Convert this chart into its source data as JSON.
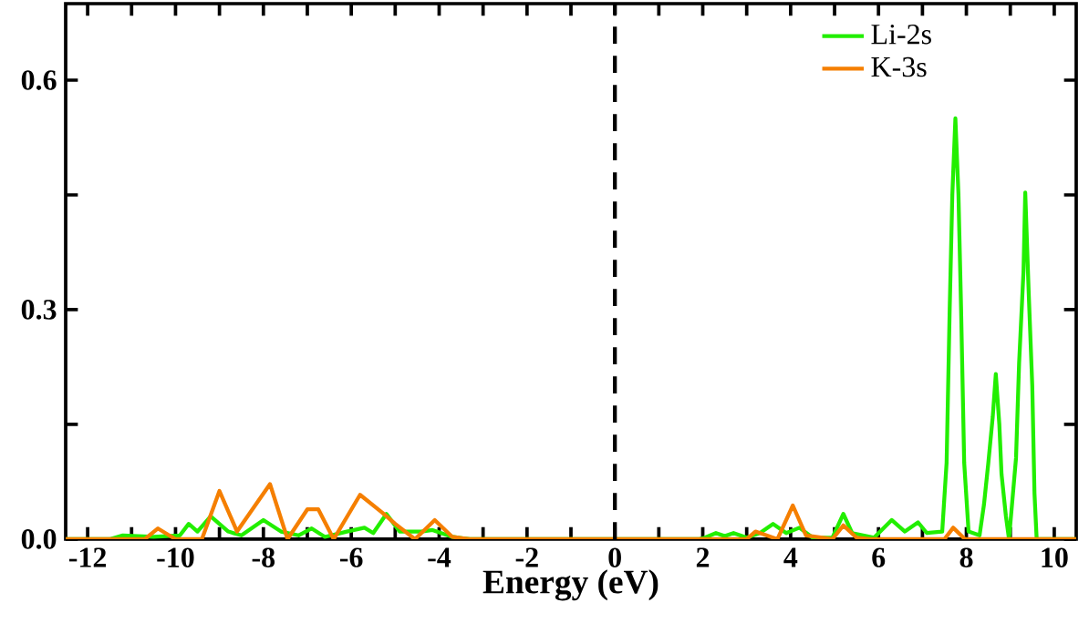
{
  "chart_data": {
    "type": "line",
    "xlabel": "Energy (eV)",
    "xlim": [
      -12.5,
      10.5
    ],
    "ylim": [
      0,
      0.7
    ],
    "xticks": [
      -12,
      {
        "value": -11,
        "label": null
      },
      -10,
      {
        "value": -9,
        "label": null
      },
      -8,
      {
        "value": -7,
        "label": null
      },
      -6,
      {
        "value": -5,
        "label": null
      },
      -4,
      {
        "value": -3,
        "label": null
      },
      -2,
      {
        "value": -1,
        "label": null
      },
      0,
      {
        "value": 1,
        "label": null
      },
      2,
      {
        "value": 3,
        "label": null
      },
      4,
      {
        "value": 5,
        "label": null
      },
      6,
      {
        "value": 7,
        "label": null
      },
      8,
      {
        "value": 9,
        "label": null
      },
      10
    ],
    "yticks": [
      {
        "value": 0,
        "label": "0.0"
      },
      {
        "value": 0.15,
        "label": null
      },
      {
        "value": 0.3,
        "label": "0.3"
      },
      {
        "value": 0.45,
        "label": null
      },
      {
        "value": 0.6,
        "label": "0.6"
      }
    ],
    "legend": "top right",
    "grid": false,
    "marker": "none",
    "line_style": "solid",
    "ref_lines": [
      {
        "axis": "x",
        "value": 0,
        "color": "#000000",
        "line_style": "dashed"
      }
    ],
    "series": [
      {
        "name": "Li-2s",
        "color": "#22ee00",
        "x": [
          -12.5,
          -11.5,
          -11.2,
          -10.5,
          -9.9,
          -9.7,
          -9.5,
          -9.2,
          -8.8,
          -8.5,
          -8.0,
          -7.6,
          -7.2,
          -6.9,
          -6.6,
          -6.1,
          -5.7,
          -5.5,
          -5.2,
          -4.9,
          -4.4,
          -4.15,
          -3.7,
          -3.3,
          1.9,
          2.05,
          2.3,
          2.5,
          2.7,
          3.0,
          3.3,
          3.6,
          3.9,
          4.2,
          4.5,
          4.95,
          5.2,
          5.4,
          5.9,
          6.3,
          6.6,
          6.9,
          7.1,
          7.45,
          7.55,
          7.62,
          7.68,
          7.75,
          7.82,
          7.88,
          7.95,
          8.05,
          8.3,
          8.4,
          8.5,
          8.6,
          8.67,
          8.75,
          8.8,
          8.9,
          8.97,
          9.13,
          9.2,
          9.3,
          9.34,
          9.42,
          9.5,
          9.55,
          9.6,
          10.5
        ],
        "values": [
          0,
          0,
          0.005,
          0.003,
          0.005,
          0.02,
          0.01,
          0.03,
          0.01,
          0.005,
          0.025,
          0.01,
          0.005,
          0.014,
          0.003,
          0.01,
          0.015,
          0.008,
          0.033,
          0.01,
          0.01,
          0.012,
          0.003,
          0,
          0,
          0.002,
          0.008,
          0.004,
          0.008,
          0.002,
          0.008,
          0.02,
          0.008,
          0.015,
          0.002,
          0.002,
          0.033,
          0.008,
          0.002,
          0.025,
          0.01,
          0.022,
          0.008,
          0.01,
          0.1,
          0.3,
          0.45,
          0.55,
          0.45,
          0.3,
          0.1,
          0.01,
          0.005,
          0.045,
          0.1,
          0.16,
          0.216,
          0.15,
          0.085,
          0.03,
          0,
          0.106,
          0.23,
          0.35,
          0.453,
          0.32,
          0.2,
          0.06,
          0,
          0
        ]
      },
      {
        "name": "K-3s",
        "color": "#f57f00",
        "x": [
          -12.5,
          -10.7,
          -10.4,
          -10.0,
          -9.4,
          -9.0,
          -8.6,
          -7.85,
          -7.45,
          -7.0,
          -6.75,
          -6.4,
          -5.8,
          -5.3,
          -5.0,
          -4.55,
          -4.1,
          -3.7,
          -3.3,
          3.0,
          3.2,
          3.7,
          4.05,
          4.35,
          4.95,
          5.2,
          5.5,
          5.8,
          7.5,
          7.7,
          7.97,
          10.5
        ],
        "values": [
          0,
          0,
          0.014,
          0,
          0,
          0.063,
          0.01,
          0.072,
          0,
          0.039,
          0.039,
          0,
          0.058,
          0.035,
          0.02,
          0,
          0.025,
          0.003,
          0,
          0,
          0.01,
          0,
          0.044,
          0.005,
          0,
          0.018,
          0.002,
          0,
          0,
          0.015,
          0,
          0
        ]
      }
    ]
  }
}
